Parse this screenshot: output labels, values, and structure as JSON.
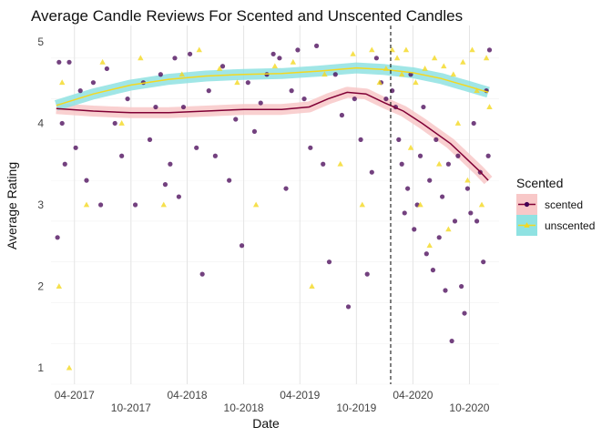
{
  "chart_data": {
    "type": "scatter",
    "title": "Average Candle Reviews For Scented and Unscented Candles",
    "xlabel": "Date",
    "ylabel": "Average Rating",
    "xlim": [
      "2017-01-15",
      "2021-01-05"
    ],
    "ylim": [
      0.8,
      5.2
    ],
    "y_ticks": [
      1,
      2,
      3,
      4,
      5
    ],
    "x_ticks": [
      {
        "date": "2017-04-01",
        "label": "04-2017",
        "row": 0
      },
      {
        "date": "2017-10-01",
        "label": "10-2017",
        "row": 1
      },
      {
        "date": "2018-04-01",
        "label": "04-2018",
        "row": 0
      },
      {
        "date": "2018-10-01",
        "label": "10-2018",
        "row": 1
      },
      {
        "date": "2019-04-01",
        "label": "04-2019",
        "row": 0
      },
      {
        "date": "2019-10-01",
        "label": "10-2019",
        "row": 1
      },
      {
        "date": "2020-04-01",
        "label": "04-2020",
        "row": 0
      },
      {
        "date": "2020-10-01",
        "label": "10-2020",
        "row": 1
      }
    ],
    "vline": "2020-01-20",
    "grid": true,
    "legend": {
      "title": "Scented",
      "position": "right",
      "items": [
        {
          "label": "scented",
          "color": "#440154",
          "band": "#f8c8c8",
          "line": "#800035"
        },
        {
          "label": "unscented",
          "color": "#f4d820",
          "band": "#8fe2e2",
          "line": "#f4d820"
        }
      ]
    },
    "series": [
      {
        "name": "scented",
        "marker": "circle",
        "color": "#440154",
        "smooth": [
          {
            "x": "2017-02-01",
            "y": 4.18
          },
          {
            "x": "2017-06-01",
            "y": 4.15
          },
          {
            "x": "2017-10-01",
            "y": 4.13
          },
          {
            "x": "2018-02-01",
            "y": 4.13
          },
          {
            "x": "2018-06-01",
            "y": 4.15
          },
          {
            "x": "2018-10-01",
            "y": 4.17
          },
          {
            "x": "2019-02-01",
            "y": 4.17
          },
          {
            "x": "2019-05-01",
            "y": 4.2
          },
          {
            "x": "2019-07-01",
            "y": 4.3
          },
          {
            "x": "2019-09-01",
            "y": 4.38
          },
          {
            "x": "2019-11-01",
            "y": 4.36
          },
          {
            "x": "2020-01-01",
            "y": 4.25
          },
          {
            "x": "2020-03-01",
            "y": 4.15
          },
          {
            "x": "2020-05-01",
            "y": 4.0
          },
          {
            "x": "2020-08-01",
            "y": 3.75
          },
          {
            "x": "2020-11-01",
            "y": 3.42
          },
          {
            "x": "2020-12-01",
            "y": 3.3
          }
        ],
        "points": [
          {
            "x": "2017-02-05",
            "y": 2.6
          },
          {
            "x": "2017-02-10",
            "y": 4.75
          },
          {
            "x": "2017-02-20",
            "y": 4.0
          },
          {
            "x": "2017-03-01",
            "y": 3.5
          },
          {
            "x": "2017-03-15",
            "y": 4.75
          },
          {
            "x": "2017-04-05",
            "y": 3.7
          },
          {
            "x": "2017-04-20",
            "y": 4.4
          },
          {
            "x": "2017-05-10",
            "y": 3.3
          },
          {
            "x": "2017-06-01",
            "y": 4.5
          },
          {
            "x": "2017-06-25",
            "y": 3.0
          },
          {
            "x": "2017-07-15",
            "y": 4.67
          },
          {
            "x": "2017-08-10",
            "y": 4.0
          },
          {
            "x": "2017-09-01",
            "y": 3.6
          },
          {
            "x": "2017-09-20",
            "y": 4.3
          },
          {
            "x": "2017-10-15",
            "y": 3.0
          },
          {
            "x": "2017-11-10",
            "y": 4.5
          },
          {
            "x": "2017-12-01",
            "y": 3.8
          },
          {
            "x": "2017-12-20",
            "y": 4.2
          },
          {
            "x": "2018-01-05",
            "y": 4.6
          },
          {
            "x": "2018-01-20",
            "y": 3.25
          },
          {
            "x": "2018-02-05",
            "y": 3.5
          },
          {
            "x": "2018-02-20",
            "y": 4.8
          },
          {
            "x": "2018-03-05",
            "y": 3.1
          },
          {
            "x": "2018-03-20",
            "y": 4.2
          },
          {
            "x": "2018-04-10",
            "y": 4.85
          },
          {
            "x": "2018-05-01",
            "y": 3.7
          },
          {
            "x": "2018-05-20",
            "y": 2.15
          },
          {
            "x": "2018-06-10",
            "y": 4.4
          },
          {
            "x": "2018-07-01",
            "y": 3.6
          },
          {
            "x": "2018-07-25",
            "y": 4.7
          },
          {
            "x": "2018-08-15",
            "y": 3.3
          },
          {
            "x": "2018-09-05",
            "y": 4.05
          },
          {
            "x": "2018-09-25",
            "y": 2.5
          },
          {
            "x": "2018-10-15",
            "y": 4.5
          },
          {
            "x": "2018-11-05",
            "y": 3.9
          },
          {
            "x": "2018-11-25",
            "y": 4.25
          },
          {
            "x": "2018-12-15",
            "y": 4.6
          },
          {
            "x": "2019-01-05",
            "y": 4.85
          },
          {
            "x": "2019-01-25",
            "y": 4.8
          },
          {
            "x": "2019-02-15",
            "y": 3.2
          },
          {
            "x": "2019-03-05",
            "y": 4.4
          },
          {
            "x": "2019-03-25",
            "y": 4.9
          },
          {
            "x": "2019-04-15",
            "y": 4.3
          },
          {
            "x": "2019-05-05",
            "y": 3.7
          },
          {
            "x": "2019-05-25",
            "y": 4.95
          },
          {
            "x": "2019-06-15",
            "y": 3.5
          },
          {
            "x": "2019-07-05",
            "y": 2.3
          },
          {
            "x": "2019-07-25",
            "y": 4.6
          },
          {
            "x": "2019-08-15",
            "y": 4.1
          },
          {
            "x": "2019-09-05",
            "y": 1.75
          },
          {
            "x": "2019-09-25",
            "y": 4.3
          },
          {
            "x": "2019-10-15",
            "y": 3.8
          },
          {
            "x": "2019-11-05",
            "y": 2.15
          },
          {
            "x": "2019-11-20",
            "y": 3.4
          },
          {
            "x": "2019-12-05",
            "y": 4.8
          },
          {
            "x": "2019-12-20",
            "y": 4.5
          },
          {
            "x": "2020-01-05",
            "y": 4.3
          },
          {
            "x": "2020-01-25",
            "y": 4.4
          },
          {
            "x": "2020-02-05",
            "y": 4.2
          },
          {
            "x": "2020-02-15",
            "y": 3.8
          },
          {
            "x": "2020-02-25",
            "y": 3.5
          },
          {
            "x": "2020-03-05",
            "y": 2.9
          },
          {
            "x": "2020-03-15",
            "y": 3.2
          },
          {
            "x": "2020-03-25",
            "y": 4.6
          },
          {
            "x": "2020-04-05",
            "y": 2.7
          },
          {
            "x": "2020-04-15",
            "y": 3.0
          },
          {
            "x": "2020-04-25",
            "y": 3.6
          },
          {
            "x": "2020-05-05",
            "y": 4.2
          },
          {
            "x": "2020-05-15",
            "y": 2.4
          },
          {
            "x": "2020-05-25",
            "y": 3.3
          },
          {
            "x": "2020-06-05",
            "y": 2.2
          },
          {
            "x": "2020-06-15",
            "y": 3.8
          },
          {
            "x": "2020-06-25",
            "y": 2.6
          },
          {
            "x": "2020-07-05",
            "y": 3.1
          },
          {
            "x": "2020-07-15",
            "y": 1.95
          },
          {
            "x": "2020-07-25",
            "y": 3.5
          },
          {
            "x": "2020-08-05",
            "y": 1.33
          },
          {
            "x": "2020-08-15",
            "y": 2.8
          },
          {
            "x": "2020-08-25",
            "y": 3.6
          },
          {
            "x": "2020-09-05",
            "y": 2.0
          },
          {
            "x": "2020-09-15",
            "y": 1.67
          },
          {
            "x": "2020-09-25",
            "y": 3.2
          },
          {
            "x": "2020-10-05",
            "y": 2.9
          },
          {
            "x": "2020-10-15",
            "y": 4.0
          },
          {
            "x": "2020-10-25",
            "y": 2.8
          },
          {
            "x": "2020-11-05",
            "y": 3.4
          },
          {
            "x": "2020-11-15",
            "y": 2.3
          },
          {
            "x": "2020-11-25",
            "y": 4.4
          },
          {
            "x": "2020-12-01",
            "y": 3.6
          },
          {
            "x": "2020-12-05",
            "y": 4.9
          }
        ]
      },
      {
        "name": "unscented",
        "marker": "triangle",
        "color": "#f4d820",
        "smooth": [
          {
            "x": "2017-02-01",
            "y": 4.22
          },
          {
            "x": "2017-06-01",
            "y": 4.36
          },
          {
            "x": "2017-10-01",
            "y": 4.47
          },
          {
            "x": "2018-02-01",
            "y": 4.54
          },
          {
            "x": "2018-06-01",
            "y": 4.58
          },
          {
            "x": "2018-10-01",
            "y": 4.6
          },
          {
            "x": "2019-02-01",
            "y": 4.61
          },
          {
            "x": "2019-06-01",
            "y": 4.64
          },
          {
            "x": "2019-10-01",
            "y": 4.68
          },
          {
            "x": "2020-01-01",
            "y": 4.66
          },
          {
            "x": "2020-04-01",
            "y": 4.62
          },
          {
            "x": "2020-07-01",
            "y": 4.55
          },
          {
            "x": "2020-10-01",
            "y": 4.45
          },
          {
            "x": "2020-12-01",
            "y": 4.38
          }
        ],
        "points": [
          {
            "x": "2017-02-10",
            "y": 2.0
          },
          {
            "x": "2017-02-20",
            "y": 4.5
          },
          {
            "x": "2017-03-15",
            "y": 1.0
          },
          {
            "x": "2017-05-10",
            "y": 3.0
          },
          {
            "x": "2017-07-01",
            "y": 4.75
          },
          {
            "x": "2017-09-01",
            "y": 4.0
          },
          {
            "x": "2017-11-01",
            "y": 4.8
          },
          {
            "x": "2018-01-15",
            "y": 3.0
          },
          {
            "x": "2018-03-15",
            "y": 4.6
          },
          {
            "x": "2018-05-10",
            "y": 4.9
          },
          {
            "x": "2018-07-15",
            "y": 4.67
          },
          {
            "x": "2018-09-10",
            "y": 4.5
          },
          {
            "x": "2018-11-10",
            "y": 3.0
          },
          {
            "x": "2019-01-10",
            "y": 4.7
          },
          {
            "x": "2019-03-10",
            "y": 4.75
          },
          {
            "x": "2019-05-10",
            "y": 2.0
          },
          {
            "x": "2019-06-20",
            "y": 4.6
          },
          {
            "x": "2019-08-10",
            "y": 3.5
          },
          {
            "x": "2019-09-20",
            "y": 4.85
          },
          {
            "x": "2019-10-20",
            "y": 3.0
          },
          {
            "x": "2019-11-20",
            "y": 4.9
          },
          {
            "x": "2019-12-15",
            "y": 4.5
          },
          {
            "x": "2020-01-05",
            "y": 4.67
          },
          {
            "x": "2020-01-25",
            "y": 4.9
          },
          {
            "x": "2020-02-10",
            "y": 4.8
          },
          {
            "x": "2020-02-25",
            "y": 4.6
          },
          {
            "x": "2020-03-10",
            "y": 4.9
          },
          {
            "x": "2020-03-25",
            "y": 3.7
          },
          {
            "x": "2020-04-10",
            "y": 4.5
          },
          {
            "x": "2020-04-25",
            "y": 3.0
          },
          {
            "x": "2020-05-10",
            "y": 4.67
          },
          {
            "x": "2020-05-25",
            "y": 2.5
          },
          {
            "x": "2020-06-10",
            "y": 4.8
          },
          {
            "x": "2020-06-25",
            "y": 3.5
          },
          {
            "x": "2020-07-10",
            "y": 4.7
          },
          {
            "x": "2020-07-25",
            "y": 2.7
          },
          {
            "x": "2020-08-10",
            "y": 4.6
          },
          {
            "x": "2020-08-25",
            "y": 4.0
          },
          {
            "x": "2020-09-10",
            "y": 4.75
          },
          {
            "x": "2020-09-25",
            "y": 3.3
          },
          {
            "x": "2020-10-10",
            "y": 4.9
          },
          {
            "x": "2020-10-25",
            "y": 4.4
          },
          {
            "x": "2020-11-10",
            "y": 3.0
          },
          {
            "x": "2020-11-25",
            "y": 4.8
          },
          {
            "x": "2020-12-05",
            "y": 4.2
          }
        ]
      }
    ]
  }
}
